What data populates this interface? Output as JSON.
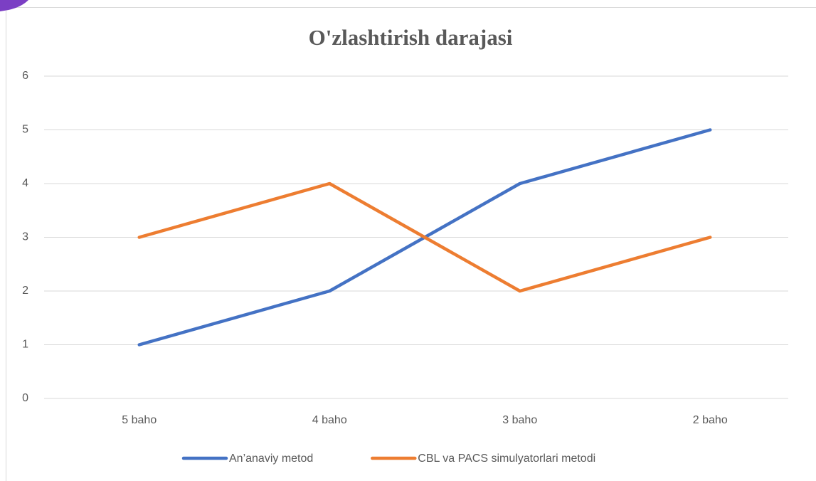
{
  "chart_data": {
    "type": "line",
    "title": "O'zlashtirish darajasi",
    "categories": [
      "5 baho",
      "4 baho",
      "3 baho",
      "2 baho"
    ],
    "series": [
      {
        "name": "An’anaviy metod",
        "color": "#4472c4",
        "values": [
          1,
          2,
          4,
          5
        ]
      },
      {
        "name": "CBL va PACS simulyatorlari metodi",
        "color": "#ed7d31",
        "values": [
          3,
          4,
          2,
          3
        ]
      }
    ],
    "ylim": [
      0,
      6
    ],
    "yticks": [
      0,
      1,
      2,
      3,
      4,
      5,
      6
    ],
    "grid": true,
    "legend": "bottom"
  }
}
